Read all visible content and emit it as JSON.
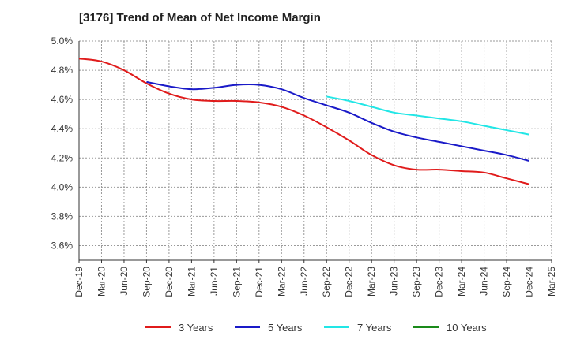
{
  "title": "[3176]  Trend of Mean of Net Income Margin",
  "chart_data": {
    "type": "line",
    "title": "[3176]  Trend of Mean of Net Income Margin",
    "xlabel": "",
    "ylabel": "",
    "ylim": [
      3.5,
      5.0
    ],
    "yticks": [
      "5.0%",
      "4.8%",
      "4.6%",
      "4.4%",
      "4.2%",
      "4.0%",
      "3.8%",
      "3.6%"
    ],
    "ytick_values": [
      5.0,
      4.8,
      4.6,
      4.4,
      4.2,
      4.0,
      3.8,
      3.6
    ],
    "categories": [
      "Dec-19",
      "Mar-20",
      "Jun-20",
      "Sep-20",
      "Dec-20",
      "Mar-21",
      "Jun-21",
      "Sep-21",
      "Dec-21",
      "Mar-22",
      "Jun-22",
      "Sep-22",
      "Dec-22",
      "Mar-23",
      "Jun-23",
      "Sep-23",
      "Dec-23",
      "Mar-24",
      "Jun-24",
      "Sep-24",
      "Dec-24",
      "Mar-25"
    ],
    "grid": true,
    "legend_position": "bottom",
    "series": [
      {
        "name": "3 Years",
        "color": "#e01b1b",
        "values": [
          4.88,
          4.86,
          4.8,
          4.71,
          4.64,
          4.6,
          4.59,
          4.59,
          4.58,
          4.55,
          4.49,
          4.41,
          4.32,
          4.22,
          4.15,
          4.12,
          4.12,
          4.11,
          4.1,
          4.06,
          4.02,
          null
        ]
      },
      {
        "name": "5 Years",
        "color": "#1a1ac8",
        "values": [
          null,
          null,
          null,
          4.72,
          4.69,
          4.67,
          4.68,
          4.7,
          4.7,
          4.67,
          4.61,
          4.56,
          4.51,
          4.44,
          4.38,
          4.34,
          4.31,
          4.28,
          4.25,
          4.22,
          4.18,
          null
        ]
      },
      {
        "name": "7 Years",
        "color": "#22e6e6",
        "values": [
          null,
          null,
          null,
          null,
          null,
          null,
          null,
          null,
          null,
          null,
          null,
          4.62,
          4.59,
          4.55,
          4.51,
          4.49,
          4.47,
          4.45,
          4.42,
          4.39,
          4.36,
          null
        ]
      },
      {
        "name": "10 Years",
        "color": "#1a8a1a",
        "values": [
          null,
          null,
          null,
          null,
          null,
          null,
          null,
          null,
          null,
          null,
          null,
          null,
          null,
          null,
          null,
          null,
          null,
          null,
          null,
          null,
          null,
          null
        ]
      }
    ]
  }
}
